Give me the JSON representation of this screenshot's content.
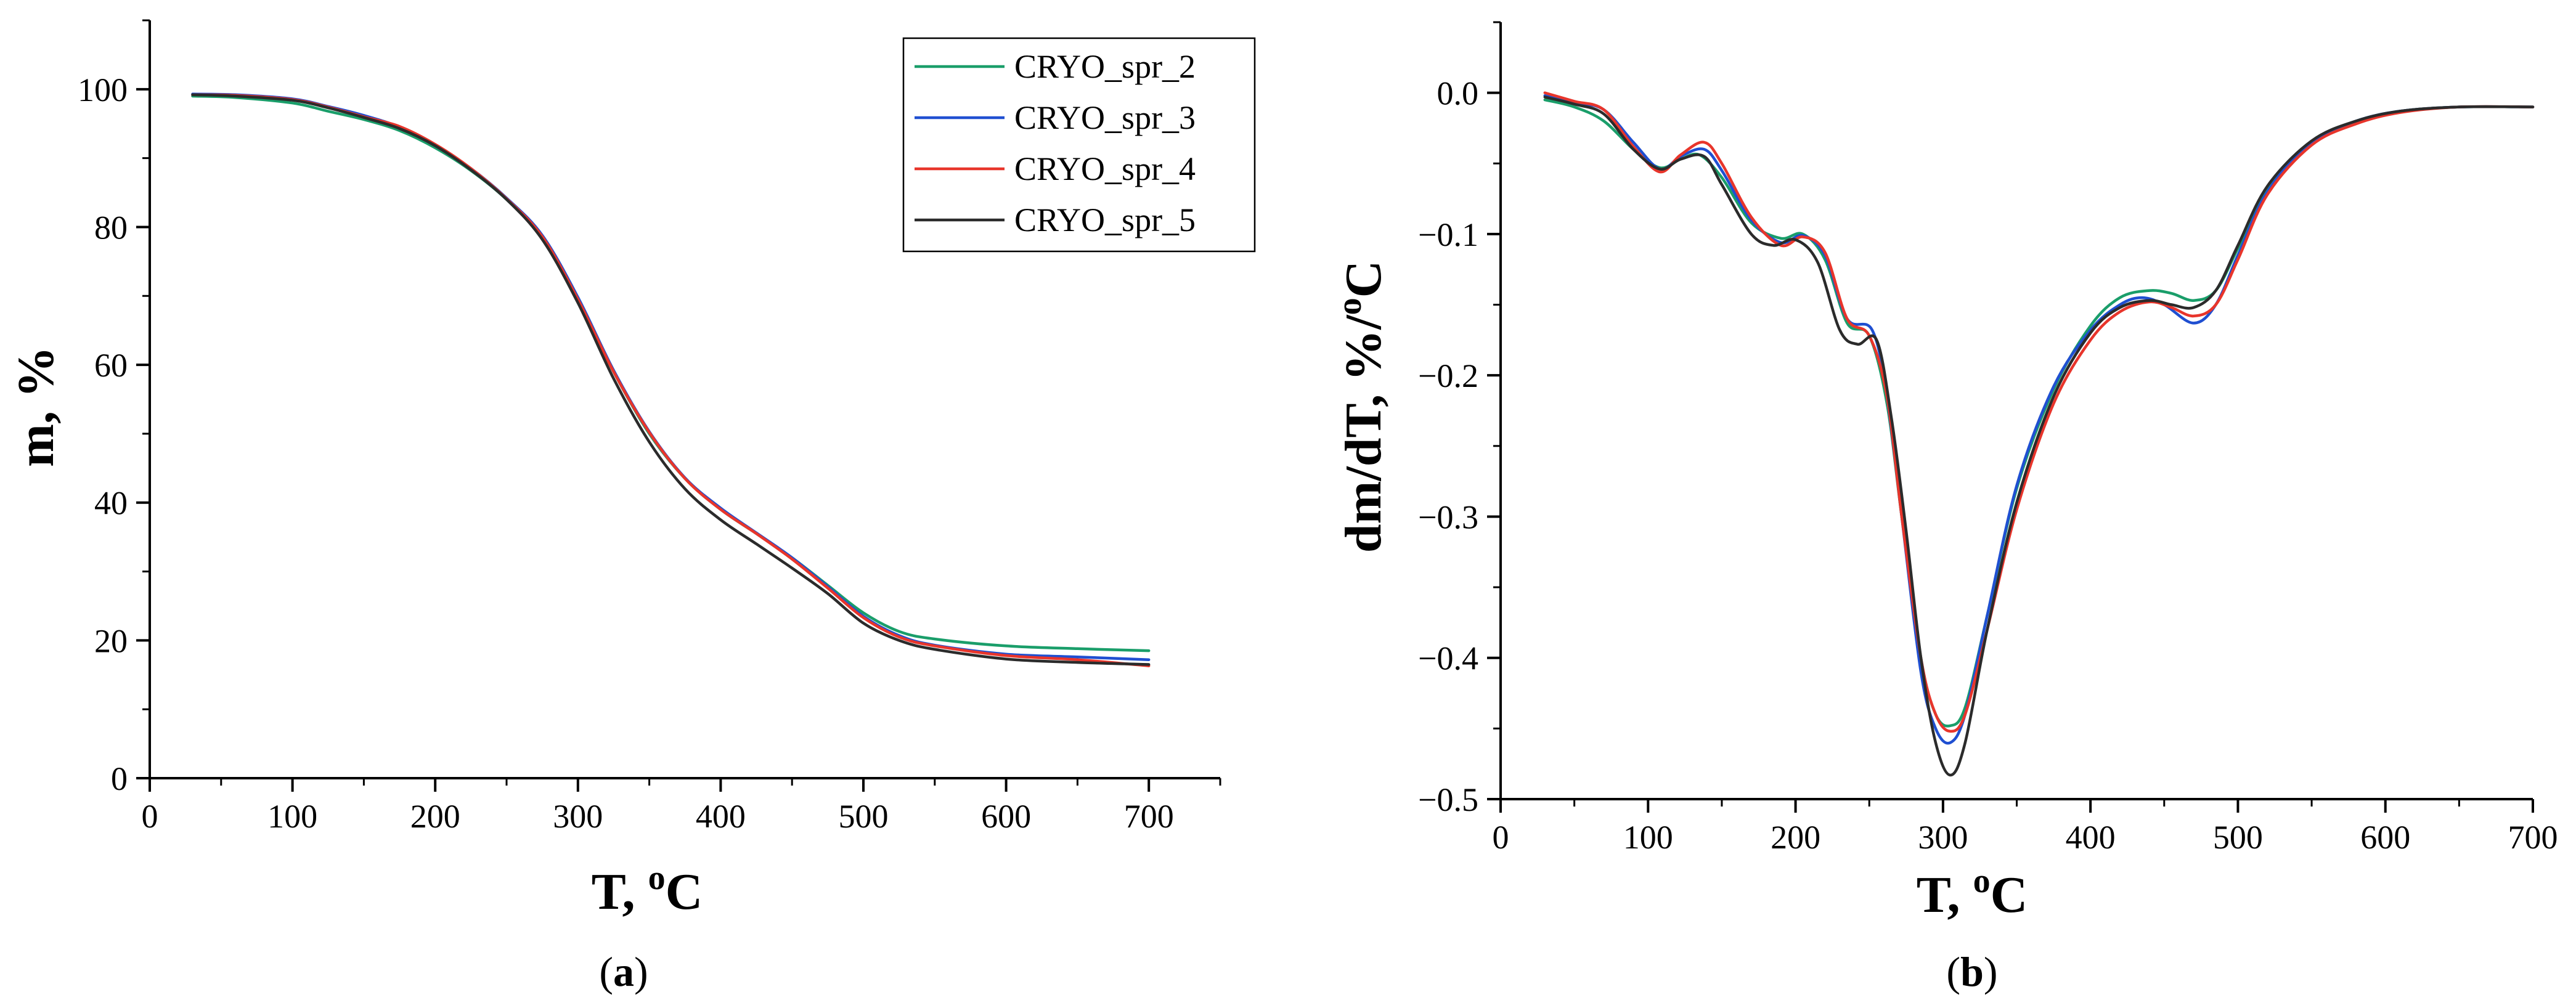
{
  "chart_data": [
    {
      "id": "a",
      "type": "line",
      "panel_label": "a",
      "xlabel": "T, ",
      "xlabel_sup": "o",
      "xlabel_unit": "C",
      "ylabel": "m, %",
      "xlim": [
        0,
        750
      ],
      "ylim": [
        0,
        110
      ],
      "xticks": [
        0,
        100,
        200,
        300,
        400,
        500,
        600,
        700
      ],
      "yticks": [
        0,
        20,
        40,
        60,
        80,
        100
      ],
      "legend": {
        "position": "top-right"
      },
      "series": [
        {
          "name": "CRYO_spr_2",
          "color": "#1a9e6a",
          "x": [
            30,
            60,
            100,
            125,
            150,
            175,
            200,
            225,
            250,
            275,
            300,
            325,
            350,
            375,
            400,
            425,
            450,
            475,
            500,
            525,
            550,
            600,
            650,
            700
          ],
          "y": [
            99.0,
            98.8,
            98.0,
            96.8,
            95.6,
            94.0,
            91.5,
            88.2,
            84.0,
            78.5,
            69.5,
            59.0,
            50.0,
            43.5,
            39.0,
            35.5,
            32.0,
            28.0,
            24.0,
            21.3,
            20.2,
            19.2,
            18.8,
            18.5
          ]
        },
        {
          "name": "CRYO_spr_3",
          "color": "#1f4fd1",
          "x": [
            30,
            60,
            100,
            125,
            150,
            175,
            200,
            225,
            250,
            275,
            300,
            325,
            350,
            375,
            400,
            425,
            450,
            475,
            500,
            525,
            550,
            600,
            650,
            700
          ],
          "y": [
            99.3,
            99.2,
            98.6,
            97.5,
            96.2,
            94.5,
            91.8,
            88.5,
            84.2,
            78.8,
            69.8,
            59.2,
            50.3,
            43.6,
            39.2,
            35.6,
            32.0,
            27.8,
            23.5,
            20.7,
            19.3,
            18.0,
            17.6,
            17.2
          ]
        },
        {
          "name": "CRYO_spr_4",
          "color": "#e8352b",
          "x": [
            30,
            60,
            100,
            125,
            150,
            175,
            200,
            225,
            250,
            275,
            300,
            325,
            350,
            375,
            400,
            425,
            450,
            475,
            500,
            525,
            550,
            600,
            650,
            700
          ],
          "y": [
            99.2,
            99.1,
            98.5,
            97.4,
            96.0,
            94.6,
            92.0,
            88.5,
            84.1,
            78.6,
            69.5,
            59.0,
            50.2,
            43.5,
            39.0,
            35.5,
            31.8,
            27.6,
            23.3,
            20.5,
            19.2,
            17.8,
            17.2,
            16.3
          ]
        },
        {
          "name": "CRYO_spr_5",
          "color": "#2b2b2b",
          "x": [
            30,
            60,
            100,
            125,
            150,
            175,
            200,
            225,
            250,
            275,
            300,
            325,
            350,
            375,
            400,
            425,
            450,
            475,
            500,
            525,
            550,
            600,
            650,
            700
          ],
          "y": [
            99.2,
            99.0,
            98.4,
            97.3,
            95.9,
            94.3,
            91.8,
            88.3,
            84.0,
            78.2,
            69.0,
            58.0,
            48.8,
            42.0,
            37.5,
            34.0,
            30.5,
            26.8,
            22.5,
            20.0,
            18.7,
            17.3,
            16.8,
            16.5
          ]
        }
      ]
    },
    {
      "id": "b",
      "type": "line",
      "panel_label": "b",
      "xlabel": "T, ",
      "xlabel_sup": "o",
      "xlabel_unit": "C",
      "ylabel_main": "dm/dT, %/",
      "ylabel_sup": "o",
      "ylabel_unit": "C",
      "xlim": [
        0,
        700
      ],
      "ylim": [
        -0.5,
        0.05
      ],
      "xticks": [
        0,
        100,
        200,
        300,
        400,
        500,
        600,
        700
      ],
      "yticks": [
        -0.5,
        -0.4,
        -0.3,
        -0.2,
        -0.1,
        0.0
      ],
      "ytick_labels": [
        "−0.5",
        "−0.4",
        "−0.3",
        "−0.2",
        "−0.1",
        "0.0"
      ],
      "series": [
        {
          "name": "CRYO_spr_2",
          "color": "#1a9e6a",
          "x": [
            30,
            50,
            70,
            90,
            108,
            122,
            135,
            150,
            170,
            190,
            205,
            220,
            235,
            250,
            262,
            272,
            285,
            295,
            305,
            315,
            330,
            350,
            375,
            400,
            420,
            440,
            455,
            470,
            485,
            500,
            520,
            550,
            580,
            610,
            650,
            700
          ],
          "y": [
            -0.005,
            -0.01,
            -0.02,
            -0.04,
            -0.053,
            -0.047,
            -0.044,
            -0.06,
            -0.092,
            -0.103,
            -0.1,
            -0.118,
            -0.163,
            -0.172,
            -0.22,
            -0.3,
            -0.4,
            -0.44,
            -0.448,
            -0.435,
            -0.37,
            -0.28,
            -0.21,
            -0.165,
            -0.145,
            -0.14,
            -0.142,
            -0.147,
            -0.14,
            -0.11,
            -0.068,
            -0.035,
            -0.02,
            -0.013,
            -0.01,
            -0.01
          ]
        },
        {
          "name": "CRYO_spr_3",
          "color": "#1f4fd1",
          "x": [
            30,
            50,
            70,
            90,
            108,
            122,
            138,
            150,
            170,
            190,
            205,
            220,
            235,
            252,
            262,
            272,
            285,
            295,
            305,
            315,
            330,
            350,
            375,
            400,
            420,
            435,
            450,
            470,
            485,
            500,
            520,
            550,
            580,
            610,
            650,
            700
          ],
          "y": [
            -0.002,
            -0.007,
            -0.012,
            -0.035,
            -0.054,
            -0.045,
            -0.04,
            -0.055,
            -0.09,
            -0.106,
            -0.101,
            -0.115,
            -0.16,
            -0.168,
            -0.215,
            -0.3,
            -0.41,
            -0.45,
            -0.46,
            -0.44,
            -0.37,
            -0.278,
            -0.208,
            -0.168,
            -0.15,
            -0.145,
            -0.15,
            -0.163,
            -0.15,
            -0.115,
            -0.07,
            -0.035,
            -0.02,
            -0.013,
            -0.01,
            -0.01
          ]
        },
        {
          "name": "CRYO_spr_4",
          "color": "#e8352b",
          "x": [
            30,
            50,
            70,
            90,
            108,
            122,
            138,
            150,
            170,
            190,
            205,
            220,
            235,
            250,
            262,
            272,
            285,
            295,
            305,
            315,
            330,
            350,
            375,
            400,
            420,
            440,
            455,
            470,
            485,
            500,
            520,
            550,
            580,
            610,
            650,
            700
          ],
          "y": [
            0.0,
            -0.006,
            -0.012,
            -0.038,
            -0.056,
            -0.044,
            -0.035,
            -0.05,
            -0.088,
            -0.108,
            -0.102,
            -0.113,
            -0.16,
            -0.172,
            -0.215,
            -0.3,
            -0.4,
            -0.44,
            -0.452,
            -0.44,
            -0.38,
            -0.295,
            -0.22,
            -0.175,
            -0.155,
            -0.148,
            -0.152,
            -0.158,
            -0.15,
            -0.118,
            -0.072,
            -0.037,
            -0.022,
            -0.014,
            -0.01,
            -0.01
          ]
        },
        {
          "name": "CRYO_spr_5",
          "color": "#2b2b2b",
          "x": [
            30,
            50,
            70,
            90,
            108,
            122,
            138,
            150,
            170,
            185,
            200,
            215,
            230,
            242,
            255,
            265,
            275,
            285,
            295,
            305,
            315,
            330,
            350,
            375,
            400,
            420,
            440,
            455,
            470,
            485,
            500,
            520,
            550,
            580,
            610,
            650,
            700
          ],
          "y": [
            -0.003,
            -0.008,
            -0.015,
            -0.04,
            -0.054,
            -0.047,
            -0.045,
            -0.065,
            -0.1,
            -0.108,
            -0.104,
            -0.12,
            -0.168,
            -0.178,
            -0.175,
            -0.23,
            -0.31,
            -0.4,
            -0.46,
            -0.483,
            -0.46,
            -0.38,
            -0.29,
            -0.215,
            -0.17,
            -0.152,
            -0.147,
            -0.15,
            -0.152,
            -0.14,
            -0.108,
            -0.066,
            -0.034,
            -0.02,
            -0.013,
            -0.01,
            -0.01
          ]
        }
      ]
    }
  ]
}
